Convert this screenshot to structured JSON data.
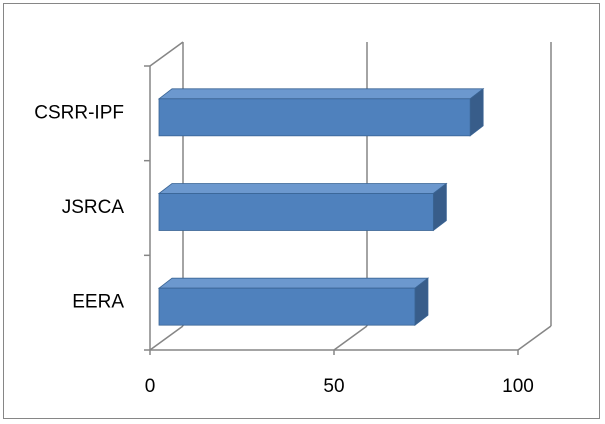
{
  "chart_data": {
    "type": "bar",
    "orientation": "horizontal",
    "style": "3d-clustered-bar",
    "categories": [
      "EERA",
      "JSRCA",
      "CSRR-IPF"
    ],
    "values": [
      72,
      77,
      87
    ],
    "xlim": [
      0,
      100
    ],
    "x_ticks": [
      0,
      50,
      100
    ],
    "grid": true,
    "legend": "none",
    "title": "",
    "xlabel": "",
    "ylabel": "",
    "colors": {
      "bar_front": "#4F81BD",
      "bar_top": "#6C98CE",
      "bar_side": "#385D8A",
      "bar_outline": "#3A6494",
      "grid": "#868686"
    }
  }
}
